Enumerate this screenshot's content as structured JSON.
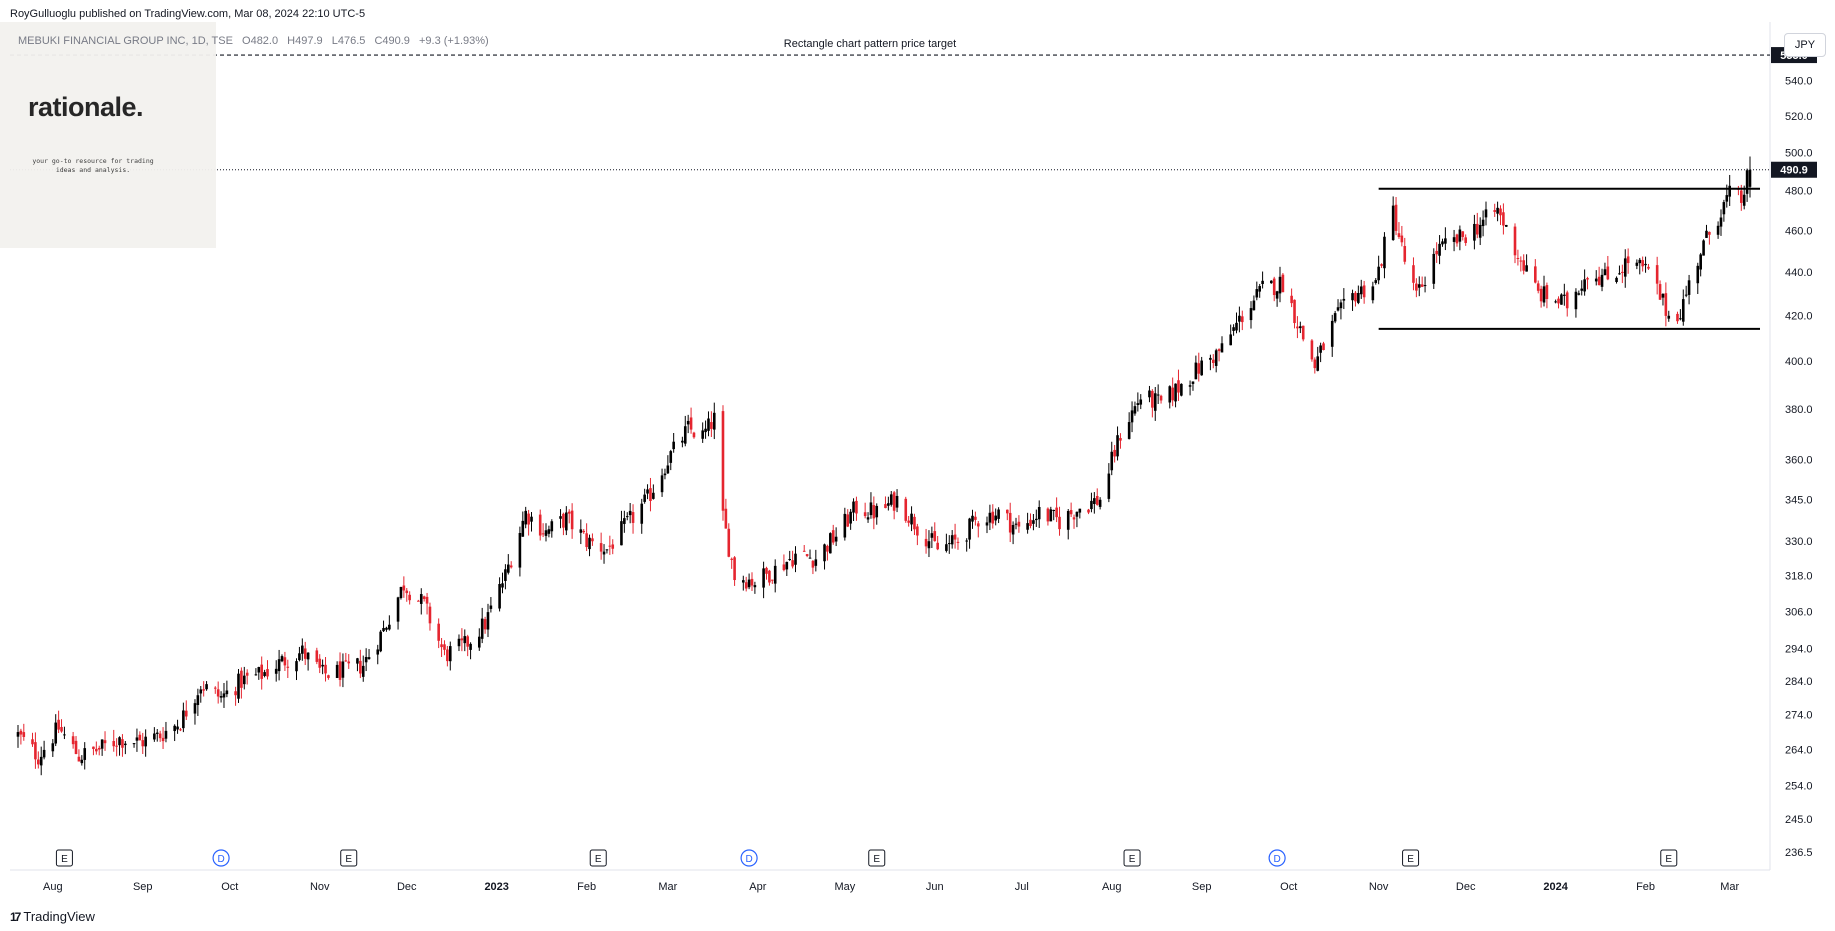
{
  "publisher_line": "RoyGulluoglu published on TradingView.com, Mar 08, 2024 22:10 UTC-5",
  "legend": {
    "symbol": "MEBUKI FINANCIAL GROUP INC, 1D, TSE",
    "open": "O482.0",
    "high": "H497.9",
    "low": "L476.5",
    "close": "C490.9",
    "change": "+9.3 (+1.93%)"
  },
  "watermark": {
    "name": "rationale.",
    "tagline": "your go-to resource for trading ideas and analysis."
  },
  "currency_button": "JPY",
  "footer_brand": "TradingView",
  "footer_icon": "tradingview-logo-icon",
  "colors": {
    "up": "#000000",
    "down": "#e5252f",
    "level_line": "#000000",
    "price_label_bg": "#131722"
  },
  "chart_data": {
    "type": "candlestick",
    "scale": "log",
    "title": "MEBUKI FINANCIAL GROUP INC, 1D, TSE",
    "y_axis_ticks": [
      "560.0",
      "540.0",
      "520.0",
      "500.0",
      "480.0",
      "460.0",
      "440.0",
      "420.0",
      "400.0",
      "380.0",
      "360.0",
      "345.0",
      "330.0",
      "318.0",
      "306.0",
      "294.0",
      "284.0",
      "274.0",
      "264.0",
      "254.0",
      "245.0",
      "236.5"
    ],
    "y_axis_values": [
      560,
      540,
      520,
      500,
      480,
      460,
      440,
      420,
      400,
      380,
      360,
      345,
      330,
      318,
      306,
      294,
      284,
      274,
      264,
      254,
      245,
      236.5
    ],
    "x_axis_ticks": [
      {
        "label": "Aug",
        "date": "2022-08-01"
      },
      {
        "label": "Sep",
        "date": "2022-09-01"
      },
      {
        "label": "Oct",
        "date": "2022-10-01"
      },
      {
        "label": "Nov",
        "date": "2022-11-01"
      },
      {
        "label": "Dec",
        "date": "2022-12-01"
      },
      {
        "label": "2023",
        "date": "2023-01-01",
        "bold": true
      },
      {
        "label": "Feb",
        "date": "2023-02-01"
      },
      {
        "label": "Mar",
        "date": "2023-03-01"
      },
      {
        "label": "Apr",
        "date": "2023-04-01"
      },
      {
        "label": "May",
        "date": "2023-05-01"
      },
      {
        "label": "Jun",
        "date": "2023-06-01"
      },
      {
        "label": "Jul",
        "date": "2023-07-01"
      },
      {
        "label": "Aug",
        "date": "2023-08-01"
      },
      {
        "label": "Sep",
        "date": "2023-09-01"
      },
      {
        "label": "Oct",
        "date": "2023-10-01"
      },
      {
        "label": "Nov",
        "date": "2023-11-01"
      },
      {
        "label": "Dec",
        "date": "2023-12-01"
      },
      {
        "label": "2024",
        "date": "2024-01-01",
        "bold": true
      },
      {
        "label": "Feb",
        "date": "2024-02-01"
      },
      {
        "label": "Mar",
        "date": "2024-03-01"
      }
    ],
    "date_range": [
      "2022-07-20",
      "2024-03-08"
    ],
    "price_range": [
      232,
      575
    ],
    "current_price": {
      "value": 490.9,
      "label": "490.9"
    },
    "target_price": {
      "value": 555.0,
      "label": "555.0"
    },
    "annotation": "Rectangle chart pattern price target",
    "rectangle_pattern": {
      "top": 481,
      "bottom": 414,
      "start": "2023-11-01",
      "end": "2024-03-08"
    },
    "events": [
      {
        "type": "E",
        "date": "2022-08-05"
      },
      {
        "type": "D",
        "date": "2022-09-28"
      },
      {
        "type": "E",
        "date": "2022-11-11"
      },
      {
        "type": "E",
        "date": "2023-02-05"
      },
      {
        "type": "D",
        "date": "2023-03-29"
      },
      {
        "type": "E",
        "date": "2023-05-12"
      },
      {
        "type": "E",
        "date": "2023-08-08"
      },
      {
        "type": "D",
        "date": "2023-09-27"
      },
      {
        "type": "E",
        "date": "2023-11-12"
      },
      {
        "type": "E",
        "date": "2024-02-09"
      }
    ],
    "path": [
      [
        "2022-07-20",
        268
      ],
      [
        "2022-07-27",
        262
      ],
      [
        "2022-08-03",
        270
      ],
      [
        "2022-08-10",
        262
      ],
      [
        "2022-08-17",
        264
      ],
      [
        "2022-08-24",
        267
      ],
      [
        "2022-08-31",
        266
      ],
      [
        "2022-09-07",
        268
      ],
      [
        "2022-09-14",
        272
      ],
      [
        "2022-09-21",
        283
      ],
      [
        "2022-09-28",
        279
      ],
      [
        "2022-10-05",
        284
      ],
      [
        "2022-10-12",
        286
      ],
      [
        "2022-10-19",
        290
      ],
      [
        "2022-10-26",
        293
      ],
      [
        "2022-11-02",
        286
      ],
      [
        "2022-11-09",
        287
      ],
      [
        "2022-11-16",
        289
      ],
      [
        "2022-11-23",
        300
      ],
      [
        "2022-11-30",
        315
      ],
      [
        "2022-12-07",
        308
      ],
      [
        "2022-12-14",
        292
      ],
      [
        "2022-12-21",
        295
      ],
      [
        "2022-12-28",
        302
      ],
      [
        "2023-01-04",
        318
      ],
      [
        "2023-01-11",
        340
      ],
      [
        "2023-01-18",
        333
      ],
      [
        "2023-01-25",
        338
      ],
      [
        "2023-02-01",
        330
      ],
      [
        "2023-02-08",
        327
      ],
      [
        "2023-02-15",
        336
      ],
      [
        "2023-02-22",
        345
      ],
      [
        "2023-03-01",
        360
      ],
      [
        "2023-03-08",
        372
      ],
      [
        "2023-03-13",
        369
      ],
      [
        "2023-03-17",
        376
      ],
      [
        "2023-03-20",
        338
      ],
      [
        "2023-03-24",
        318
      ],
      [
        "2023-03-31",
        316
      ],
      [
        "2023-04-07",
        320
      ],
      [
        "2023-04-14",
        325
      ],
      [
        "2023-04-21",
        324
      ],
      [
        "2023-04-28",
        332
      ],
      [
        "2023-05-05",
        342
      ],
      [
        "2023-05-12",
        340
      ],
      [
        "2023-05-19",
        345
      ],
      [
        "2023-05-26",
        335
      ],
      [
        "2023-06-02",
        327
      ],
      [
        "2023-06-09",
        330
      ],
      [
        "2023-06-16",
        338
      ],
      [
        "2023-06-23",
        340
      ],
      [
        "2023-06-30",
        334
      ],
      [
        "2023-07-07",
        340
      ],
      [
        "2023-07-14",
        337
      ],
      [
        "2023-07-21",
        342
      ],
      [
        "2023-07-28",
        345
      ],
      [
        "2023-08-04",
        370
      ],
      [
        "2023-08-11",
        385
      ],
      [
        "2023-08-18",
        382
      ],
      [
        "2023-08-25",
        390
      ],
      [
        "2023-09-01",
        398
      ],
      [
        "2023-09-08",
        405
      ],
      [
        "2023-09-15",
        420
      ],
      [
        "2023-09-22",
        432
      ],
      [
        "2023-09-29",
        435
      ],
      [
        "2023-10-06",
        410
      ],
      [
        "2023-10-10",
        398
      ],
      [
        "2023-10-17",
        418
      ],
      [
        "2023-10-24",
        430
      ],
      [
        "2023-10-31",
        435
      ],
      [
        "2023-11-06",
        470
      ],
      [
        "2023-11-10",
        445
      ],
      [
        "2023-11-14",
        428
      ],
      [
        "2023-11-21",
        450
      ],
      [
        "2023-11-28",
        455
      ],
      [
        "2023-12-05",
        462
      ],
      [
        "2023-12-12",
        470
      ],
      [
        "2023-12-19",
        448
      ],
      [
        "2023-12-26",
        430
      ],
      [
        "2024-01-05",
        425
      ],
      [
        "2024-01-12",
        440
      ],
      [
        "2024-01-19",
        437
      ],
      [
        "2024-01-26",
        445
      ],
      [
        "2024-02-02",
        440
      ],
      [
        "2024-02-09",
        420
      ],
      [
        "2024-02-13",
        422
      ],
      [
        "2024-02-20",
        450
      ],
      [
        "2024-02-27",
        470
      ],
      [
        "2024-03-01",
        478
      ],
      [
        "2024-03-05",
        475
      ],
      [
        "2024-03-08",
        490.9
      ]
    ]
  }
}
